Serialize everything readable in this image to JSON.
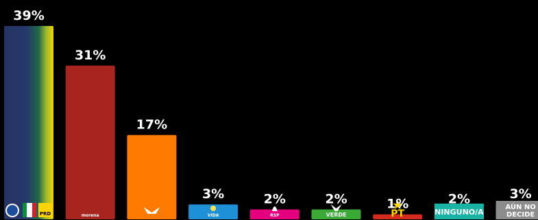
{
  "chart_data": {
    "type": "bar",
    "title": "",
    "xlabel": "",
    "ylabel": "",
    "ylim": [
      0,
      39
    ],
    "grid": false,
    "legend": "none",
    "categories": [
      "PAN-PRI-PRD",
      "MORENA",
      "MC",
      "VIDA",
      "RSP",
      "VERDE",
      "PT",
      "NINGUNO/A",
      "AÚN NO DECIDE"
    ],
    "values": [
      39,
      31,
      17,
      3,
      2,
      2,
      1,
      2,
      3
    ],
    "value_labels": [
      "39%",
      "31%",
      "17%",
      "3%",
      "2%",
      "2%",
      "1%",
      "2%",
      "3%"
    ],
    "bar_colors": [
      "#2b3a6b",
      "#a8241f",
      "#ff7a00",
      "#1e90d8",
      "#e5007e",
      "#3aa935",
      "#d52b1e",
      "#ffffff",
      "#ffffff"
    ],
    "bar_logo_labels": [
      "PRD",
      "morena",
      "",
      "VIDA",
      "RSP",
      "VERDE",
      "PT",
      "NINGUNO/A",
      "AÚN NO DECIDE"
    ],
    "logo_icons": [
      "pan-pri-prd-logos",
      "morena-logo",
      "mc-eagle-logo",
      "vida-logo",
      "rsp-logo",
      "verde-toucan-logo",
      "pt-star-logo",
      "ninguno-tile",
      "aun-no-decide-tile"
    ]
  }
}
